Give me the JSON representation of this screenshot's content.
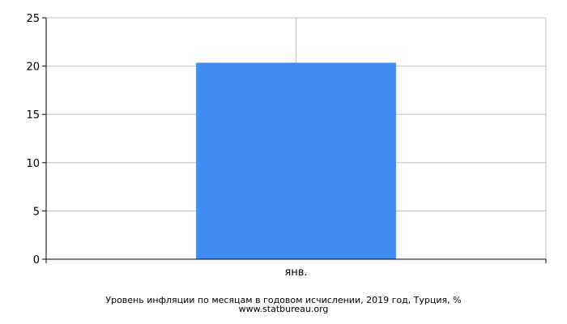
{
  "chart_data": {
    "type": "bar",
    "categories": [
      "янв."
    ],
    "values": [
      20.35
    ],
    "ylim": [
      0,
      25
    ],
    "yticks": [
      0,
      5,
      10,
      15,
      20,
      25
    ],
    "grid": true,
    "bar_color": "#428bf0",
    "grid_color": "#c0c0c0",
    "title": "Уровень инфляции по месяцам в годовом исчислении, 2019 год, Турция, %",
    "source": "www.statbureau.org"
  }
}
